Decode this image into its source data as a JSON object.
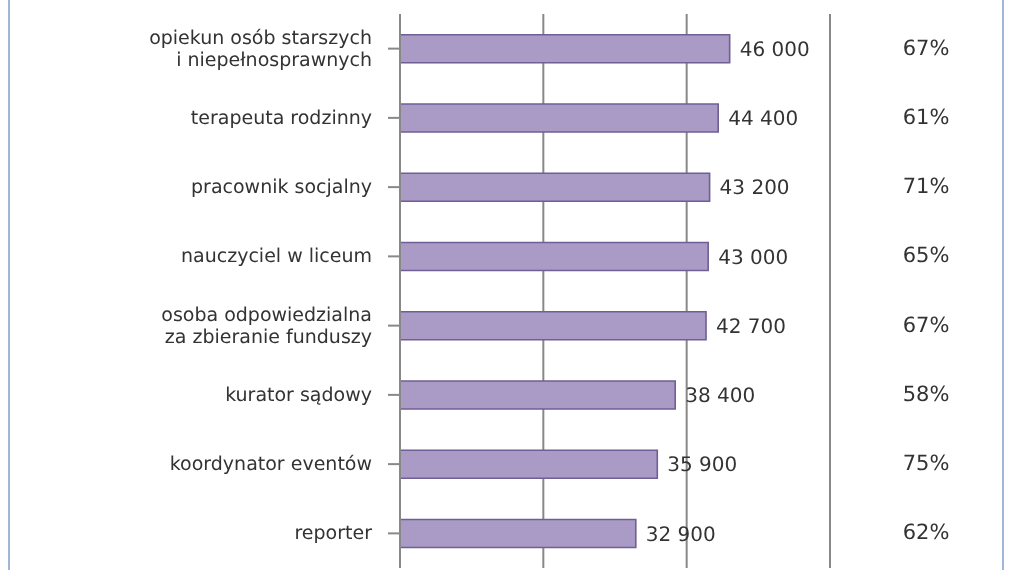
{
  "chart_data": {
    "type": "bar",
    "orientation": "horizontal",
    "categories": [
      "opiekun osób starszych i niepełnosprawnych",
      "terapeuta rodzinny",
      "pracownik socjalny",
      "nauczyciel w liceum",
      "osoba odpowiedzialna za zbieranie funduszy",
      "kurator sądowy",
      "koordynator eventów",
      "reporter"
    ],
    "values": [
      46000,
      44400,
      43200,
      43000,
      42700,
      38400,
      35900,
      32900
    ],
    "color": "#a99bc6",
    "xlim": [
      0,
      60000
    ],
    "xticks": [
      {
        "value": 0,
        "label": null
      },
      {
        "value": 20000,
        "label": null
      },
      {
        "value": 40000,
        "label": null
      },
      {
        "value": 60000,
        "label": null
      }
    ],
    "grid": "x",
    "tick_labels": "y",
    "data_labels": true,
    "annotations": [
      "67%",
      "61%",
      "71%",
      "65%",
      "67%",
      "58%",
      "75%",
      "62%"
    ]
  }
}
